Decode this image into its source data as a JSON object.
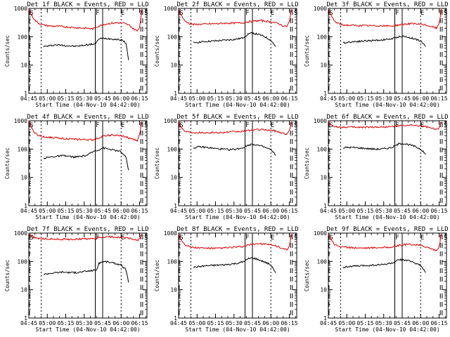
{
  "figure": {
    "panel_ylabel": "Counts/sec",
    "xlabel": "Start Time (04-Nov-10 04:42:00)",
    "xticks": [
      "04:45",
      "05:00",
      "05:15",
      "05:30",
      "05:45",
      "06:00",
      "06:15"
    ],
    "yticks": [
      "1",
      "10",
      "100",
      "1000"
    ],
    "markers": [
      "S",
      "F",
      "E",
      "S"
    ],
    "colors": {
      "events": "#000000",
      "lld": "#e00000",
      "axes": "#000000"
    }
  },
  "chart_data": [
    {
      "type": "line",
      "title": "Det 1f BLACK = Events, RED = LLD",
      "ylim": [
        1,
        1000
      ],
      "yscale": "log",
      "xrange_min": [
        3,
        99
      ],
      "series": [
        {
          "name": "Events",
          "color": "#000000",
          "x": [
            15,
            20,
            25,
            30,
            35,
            40,
            45,
            50,
            55,
            57.5,
            60,
            63,
            68,
            73,
            78,
            82,
            84
          ],
          "y": [
            45,
            48,
            52,
            50,
            48,
            46,
            48,
            52,
            55,
            58,
            85,
            88,
            86,
            82,
            78,
            60,
            15
          ]
        },
        {
          "name": "LLD",
          "color": "#e00000",
          "x": [
            3,
            5,
            8,
            12,
            15,
            20,
            25,
            30,
            35,
            40,
            45,
            50,
            55,
            60,
            65,
            70,
            75,
            80,
            85,
            88,
            91,
            93,
            95
          ],
          "y": [
            950,
            600,
            380,
            280,
            260,
            240,
            235,
            230,
            220,
            210,
            205,
            200,
            190,
            240,
            280,
            300,
            310,
            300,
            250,
            190,
            160,
            220,
            950
          ]
        }
      ]
    },
    {
      "type": "line",
      "title": "Det 2f BLACK = Events, RED = LLD",
      "ylim": [
        1,
        1000
      ],
      "yscale": "log",
      "xrange_min": [
        3,
        99
      ],
      "series": [
        {
          "name": "Events",
          "color": "#000000",
          "x": [
            15,
            20,
            25,
            30,
            35,
            40,
            45,
            50,
            55,
            60,
            63,
            68,
            73,
            78,
            82
          ],
          "y": [
            60,
            65,
            68,
            70,
            72,
            75,
            78,
            82,
            90,
            130,
            135,
            120,
            100,
            75,
            45
          ]
        },
        {
          "name": "LLD",
          "color": "#e00000",
          "x": [
            3,
            5,
            8,
            12,
            15,
            20,
            25,
            30,
            35,
            40,
            45,
            50,
            55,
            60,
            65,
            70,
            75,
            80,
            85,
            88,
            91,
            93,
            95
          ],
          "y": [
            950,
            600,
            360,
            290,
            270,
            275,
            280,
            285,
            290,
            300,
            300,
            305,
            310,
            340,
            360,
            370,
            350,
            330,
            280,
            240,
            230,
            350,
            950
          ]
        }
      ]
    },
    {
      "type": "line",
      "title": "Det 3f BLACK = Events, RED = LLD",
      "ylim": [
        1,
        1000
      ],
      "yscale": "log",
      "xrange_min": [
        3,
        99
      ],
      "series": [
        {
          "name": "Events",
          "color": "#000000",
          "x": [
            15,
            20,
            25,
            30,
            35,
            40,
            45,
            50,
            55,
            60,
            63,
            68,
            73,
            78,
            82
          ],
          "y": [
            60,
            65,
            68,
            70,
            72,
            74,
            76,
            80,
            85,
            100,
            105,
            95,
            85,
            70,
            45
          ]
        },
        {
          "name": "LLD",
          "color": "#e00000",
          "x": [
            3,
            5,
            8,
            12,
            15,
            20,
            25,
            30,
            35,
            40,
            45,
            50,
            55,
            60,
            65,
            70,
            75,
            80,
            85,
            88,
            91,
            93,
            95
          ],
          "y": [
            950,
            600,
            350,
            280,
            260,
            255,
            250,
            248,
            245,
            245,
            245,
            240,
            240,
            260,
            280,
            290,
            280,
            270,
            240,
            220,
            200,
            300,
            950
          ]
        }
      ]
    },
    {
      "type": "line",
      "title": "Det 4f BLACK = Events, RED = LLD",
      "ylim": [
        1,
        1000
      ],
      "yscale": "log",
      "xrange_min": [
        3,
        99
      ],
      "series": [
        {
          "name": "Events",
          "color": "#000000",
          "x": [
            15,
            20,
            25,
            30,
            35,
            40,
            45,
            50,
            53,
            56,
            60,
            63,
            68,
            73,
            78,
            82,
            84
          ],
          "y": [
            48,
            52,
            55,
            58,
            56,
            52,
            55,
            60,
            70,
            85,
            95,
            110,
            100,
            90,
            80,
            50,
            18
          ]
        },
        {
          "name": "LLD",
          "color": "#e00000",
          "x": [
            3,
            5,
            8,
            12,
            15,
            20,
            25,
            30,
            35,
            40,
            45,
            50,
            55,
            60,
            65,
            70,
            75,
            80,
            85,
            88,
            91,
            93,
            95
          ],
          "y": [
            950,
            600,
            360,
            290,
            270,
            260,
            250,
            240,
            230,
            220,
            220,
            215,
            210,
            250,
            300,
            310,
            300,
            280,
            240,
            220,
            200,
            320,
            950
          ]
        }
      ]
    },
    {
      "type": "line",
      "title": "Det 5f BLACK = Events, RED = LLD",
      "ylim": [
        1,
        1000
      ],
      "yscale": "log",
      "xrange_min": [
        3,
        99
      ],
      "series": [
        {
          "name": "Events",
          "color": "#000000",
          "x": [
            15,
            20,
            25,
            30,
            35,
            40,
            45,
            50,
            55,
            60,
            63,
            68,
            73,
            78,
            82
          ],
          "y": [
            110,
            120,
            115,
            108,
            102,
            98,
            95,
            100,
            110,
            140,
            150,
            135,
            115,
            95,
            60
          ]
        },
        {
          "name": "LLD",
          "color": "#e00000",
          "x": [
            3,
            5,
            8,
            12,
            15,
            20,
            25,
            30,
            35,
            40,
            45,
            50,
            55,
            60,
            65,
            70,
            75,
            80,
            85,
            88,
            91,
            93,
            95
          ],
          "y": [
            950,
            600,
            420,
            400,
            390,
            385,
            380,
            380,
            385,
            390,
            400,
            410,
            420,
            450,
            480,
            490,
            470,
            450,
            400,
            360,
            330,
            450,
            950
          ]
        }
      ]
    },
    {
      "type": "line",
      "title": "Det 6f BLACK = Events, RED = LLD",
      "ylim": [
        1,
        1000
      ],
      "yscale": "log",
      "xrange_min": [
        3,
        99
      ],
      "series": [
        {
          "name": "Events",
          "color": "#000000",
          "x": [
            15,
            20,
            25,
            30,
            35,
            40,
            45,
            50,
            55,
            60,
            63,
            68,
            73,
            78,
            82
          ],
          "y": [
            110,
            115,
            112,
            108,
            104,
            100,
            100,
            105,
            115,
            150,
            160,
            145,
            125,
            100,
            65
          ]
        },
        {
          "name": "LLD",
          "color": "#e00000",
          "x": [
            3,
            5,
            8,
            12,
            15,
            20,
            25,
            30,
            35,
            40,
            45,
            50,
            55,
            60,
            65,
            70,
            75,
            80,
            85,
            88,
            91,
            93,
            95
          ],
          "y": [
            950,
            700,
            620,
            600,
            600,
            595,
            590,
            590,
            595,
            600,
            600,
            610,
            620,
            650,
            680,
            690,
            670,
            640,
            580,
            520,
            480,
            560,
            900
          ]
        }
      ]
    },
    {
      "type": "line",
      "title": "Det 7f BLACK = Events, RED = LLD",
      "ylim": [
        1,
        1000
      ],
      "yscale": "log",
      "xrange_min": [
        3,
        99
      ],
      "series": [
        {
          "name": "Events",
          "color": "#000000",
          "x": [
            15,
            20,
            25,
            30,
            35,
            40,
            45,
            50,
            55,
            58,
            60,
            63,
            68,
            73,
            78,
            82,
            84
          ],
          "y": [
            35,
            38,
            40,
            42,
            41,
            40,
            42,
            45,
            48,
            50,
            85,
            100,
            95,
            85,
            75,
            50,
            18
          ]
        },
        {
          "name": "LLD",
          "color": "#e00000",
          "x": [
            3,
            5,
            8,
            12,
            15,
            20,
            25,
            30,
            35,
            40,
            45,
            50,
            55,
            60,
            65,
            70,
            75,
            80,
            85,
            88,
            91,
            93,
            95
          ],
          "y": [
            950,
            800,
            680,
            640,
            630,
            620,
            610,
            600,
            600,
            610,
            620,
            630,
            620,
            680,
            720,
            740,
            720,
            690,
            640,
            600,
            560,
            620,
            950
          ]
        }
      ]
    },
    {
      "type": "line",
      "title": "Det 8f BLACK = Events, RED = LLD",
      "ylim": [
        1,
        1000
      ],
      "yscale": "log",
      "xrange_min": [
        3,
        99
      ],
      "series": [
        {
          "name": "Events",
          "color": "#000000",
          "x": [
            15,
            20,
            25,
            30,
            35,
            40,
            45,
            50,
            55,
            60,
            63,
            68,
            73,
            78,
            82
          ],
          "y": [
            62,
            66,
            70,
            72,
            74,
            76,
            80,
            85,
            95,
            125,
            135,
            115,
            95,
            75,
            40
          ]
        },
        {
          "name": "LLD",
          "color": "#e00000",
          "x": [
            3,
            5,
            8,
            12,
            15,
            20,
            25,
            30,
            35,
            40,
            45,
            50,
            55,
            60,
            65,
            70,
            75,
            80,
            85,
            88,
            91,
            93,
            95
          ],
          "y": [
            950,
            600,
            400,
            330,
            310,
            300,
            295,
            290,
            290,
            300,
            310,
            320,
            330,
            380,
            420,
            420,
            400,
            370,
            320,
            280,
            250,
            350,
            950
          ]
        }
      ]
    },
    {
      "type": "line",
      "title": "Det 9f BLACK = Events, RED = LLD",
      "ylim": [
        1,
        1000
      ],
      "yscale": "log",
      "xrange_min": [
        3,
        99
      ],
      "series": [
        {
          "name": "Events",
          "color": "#000000",
          "x": [
            15,
            20,
            25,
            30,
            35,
            40,
            45,
            50,
            55,
            60,
            63,
            68,
            73,
            78,
            82
          ],
          "y": [
            62,
            66,
            68,
            70,
            72,
            74,
            76,
            80,
            88,
            110,
            118,
            105,
            90,
            72,
            40
          ]
        },
        {
          "name": "LLD",
          "color": "#e00000",
          "x": [
            3,
            5,
            8,
            12,
            15,
            20,
            25,
            30,
            35,
            40,
            45,
            50,
            55,
            60,
            65,
            70,
            75,
            80,
            85,
            88,
            91,
            93,
            95
          ],
          "y": [
            950,
            650,
            400,
            340,
            320,
            310,
            305,
            300,
            300,
            305,
            310,
            315,
            320,
            360,
            390,
            400,
            380,
            350,
            300,
            270,
            240,
            330,
            950
          ]
        }
      ]
    }
  ]
}
